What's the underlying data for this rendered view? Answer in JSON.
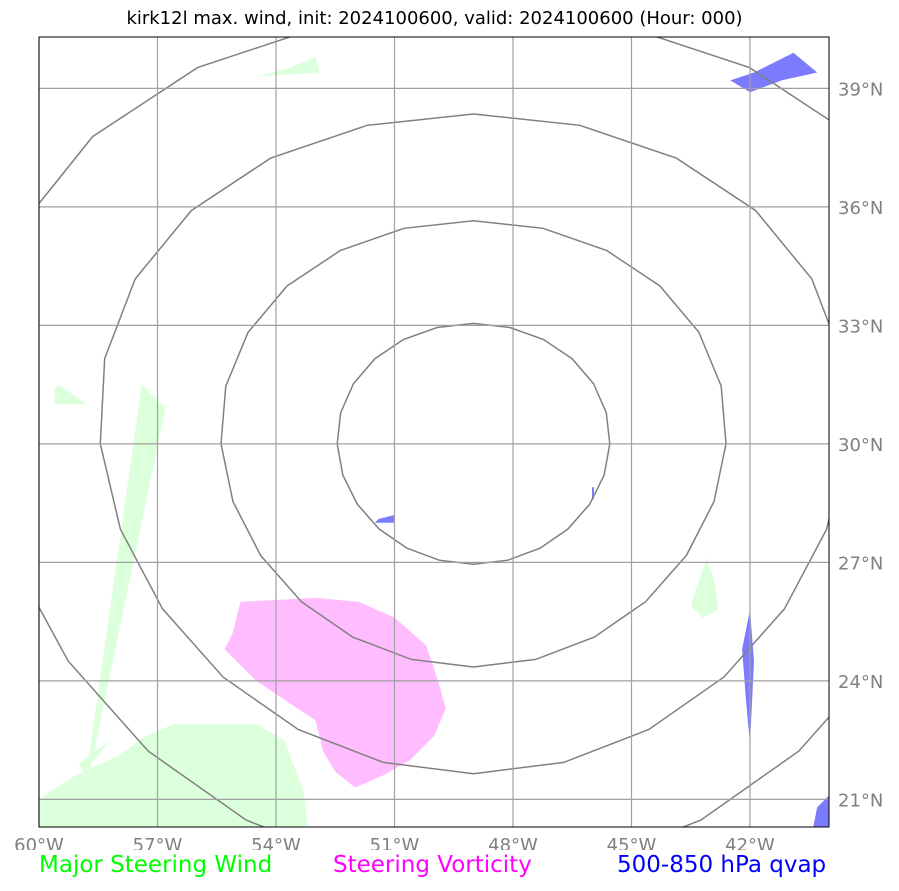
{
  "chart_data": {
    "type": "map",
    "title": "kirk12l max. wind, init: 2024100600, valid: 2024100600 (Hour: 000)",
    "x_ticks": [
      "60°W",
      "57°W",
      "54°W",
      "51°W",
      "48°W",
      "45°W",
      "42°W"
    ],
    "x_tick_values": [
      -60,
      -57,
      -54,
      -51,
      -48,
      -45,
      -42
    ],
    "y_ticks": [
      "21°N",
      "24°N",
      "27°N",
      "30°N",
      "33°N",
      "36°N",
      "39°N"
    ],
    "y_tick_values": [
      21,
      24,
      27,
      30,
      33,
      36,
      39
    ],
    "xlim": [
      -60,
      -40
    ],
    "ylim": [
      20.3,
      40.3
    ],
    "grid": true,
    "range_rings": {
      "center": [
        -49.0,
        30.0
      ],
      "radii_deg_lat": [
        3.05,
        5.65,
        8.35,
        11.0
      ]
    },
    "legend": [
      {
        "label": "Major Steering Wind",
        "color": "#00ff00"
      },
      {
        "label": "Steering Vorticity",
        "color": "#ff00ff"
      },
      {
        "label": "500-850 hPa qvap",
        "color": "#0000ff"
      }
    ],
    "regions": {
      "wind": [
        [
          [
            -57.4,
            31.5
          ],
          [
            -56.8,
            30.9
          ],
          [
            -58.9,
            20.8
          ],
          [
            -59.0,
            21.5
          ],
          [
            -58.9,
            20.9
          ]
        ],
        [
          [
            -54.5,
            39.3
          ],
          [
            -52.9,
            39.4
          ],
          [
            -53.0,
            39.8
          ],
          [
            -53.7,
            39.5
          ]
        ],
        [
          [
            -59.5,
            31.5
          ],
          [
            -58.8,
            31.0
          ],
          [
            -59.6,
            31.0
          ],
          [
            -59.6,
            31.4
          ]
        ],
        [
          [
            -58.2,
            22.5
          ],
          [
            -59.0,
            21.5
          ],
          [
            -58.8,
            21.6
          ],
          [
            -59.0,
            21.9
          ]
        ],
        [
          [
            -60,
            21.0
          ],
          [
            -59.1,
            21.6
          ],
          [
            -58.0,
            22.1
          ],
          [
            -57.3,
            22.6
          ],
          [
            -56.6,
            22.9
          ],
          [
            -55.4,
            22.9
          ],
          [
            -54.5,
            22.9
          ],
          [
            -53.8,
            22.5
          ],
          [
            -53.3,
            21.2
          ],
          [
            -53.2,
            20.3
          ],
          [
            -60,
            20.3
          ]
        ],
        [
          [
            -43.1,
            27.1
          ],
          [
            -42.9,
            26.5
          ],
          [
            -42.8,
            25.8
          ],
          [
            -43.2,
            25.6
          ],
          [
            -43.5,
            25.9
          ],
          [
            -43.3,
            26.5
          ]
        ]
      ],
      "vorticity": [
        [
          [
            -54.9,
            26.0
          ],
          [
            -53.0,
            26.1
          ],
          [
            -51.9,
            26.0
          ],
          [
            -51.0,
            25.6
          ],
          [
            -50.2,
            24.9
          ],
          [
            -49.9,
            24.0
          ],
          [
            -49.7,
            23.3
          ],
          [
            -50.0,
            22.6
          ],
          [
            -50.6,
            22.0
          ],
          [
            -51.3,
            21.6
          ],
          [
            -52.0,
            21.3
          ],
          [
            -52.5,
            21.7
          ],
          [
            -52.8,
            22.2
          ],
          [
            -53.0,
            23.0
          ],
          [
            -53.6,
            23.4
          ],
          [
            -54.5,
            24.0
          ],
          [
            -55.3,
            24.8
          ],
          [
            -55.1,
            25.2
          ]
        ]
      ],
      "qvap": [
        [
          [
            -41.9,
            39.4
          ],
          [
            -40.9,
            39.9
          ],
          [
            -40.3,
            39.4
          ],
          [
            -41.2,
            39.2
          ],
          [
            -42.0,
            38.9
          ],
          [
            -42.5,
            39.2
          ]
        ],
        [
          [
            -51.4,
            28.1
          ],
          [
            -51.0,
            28.2
          ],
          [
            -51.0,
            28.0
          ],
          [
            -51.5,
            28.0
          ]
        ],
        [
          [
            -42.0,
            25.8
          ],
          [
            -41.9,
            24.5
          ],
          [
            -42.0,
            22.4
          ],
          [
            -42.1,
            23.5
          ],
          [
            -42.2,
            24.8
          ]
        ],
        [
          [
            -40.4,
            20.3
          ],
          [
            -40.0,
            20.3
          ],
          [
            -40.0,
            21.1
          ],
          [
            -40.3,
            20.8
          ]
        ],
        [
          [
            -46.0,
            28.9
          ],
          [
            -45.95,
            28.9
          ],
          [
            -45.95,
            28.6
          ],
          [
            -46.0,
            28.6
          ]
        ]
      ]
    }
  }
}
